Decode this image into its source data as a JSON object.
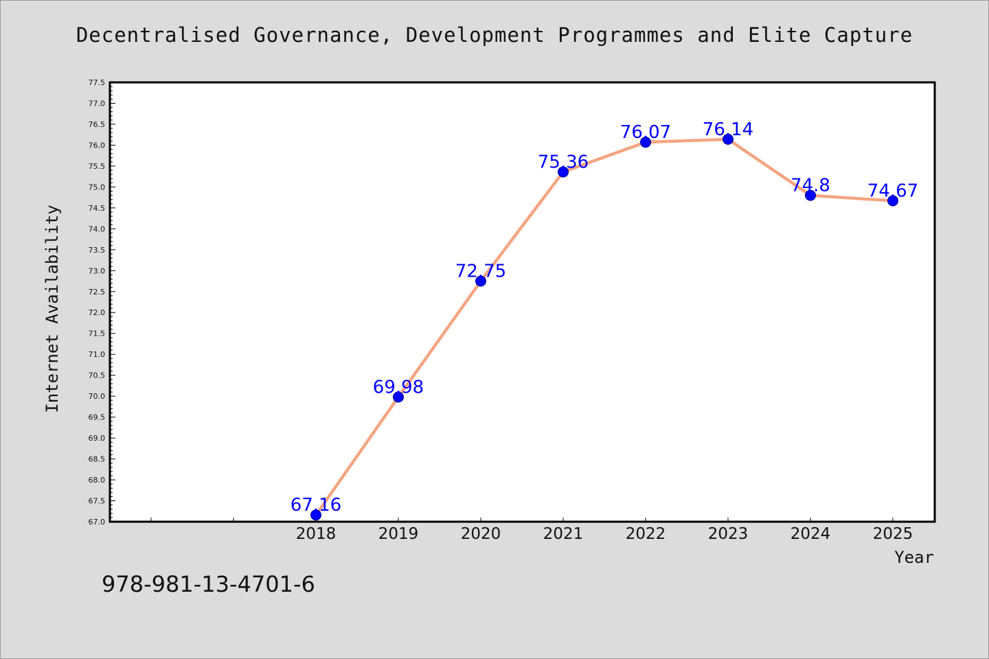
{
  "chart_data": {
    "type": "line",
    "title": "Decentralised Governance, Development Programmes and Elite Capture",
    "xlabel": "Year",
    "ylabel": "Internet Availability",
    "categories": [
      "2018",
      "2019",
      "2020",
      "2021",
      "2022",
      "2023",
      "2024",
      "2025"
    ],
    "values": [
      67.16,
      69.98,
      72.75,
      75.36,
      76.07,
      76.14,
      74.8,
      74.67
    ],
    "data_labels": [
      "67.16",
      "69.98",
      "72.75",
      "75.36",
      "76.07",
      "76.14",
      "74.8",
      "74.67"
    ],
    "ylim": [
      67.0,
      77.5
    ],
    "y_tick_step": 0.5,
    "grid": false,
    "legend": "none",
    "line_color": "#f4a582",
    "marker_color": "#0000ff",
    "label_color": "#0000ff"
  },
  "footer": {
    "isbn": "978-981-13-4701-6"
  }
}
